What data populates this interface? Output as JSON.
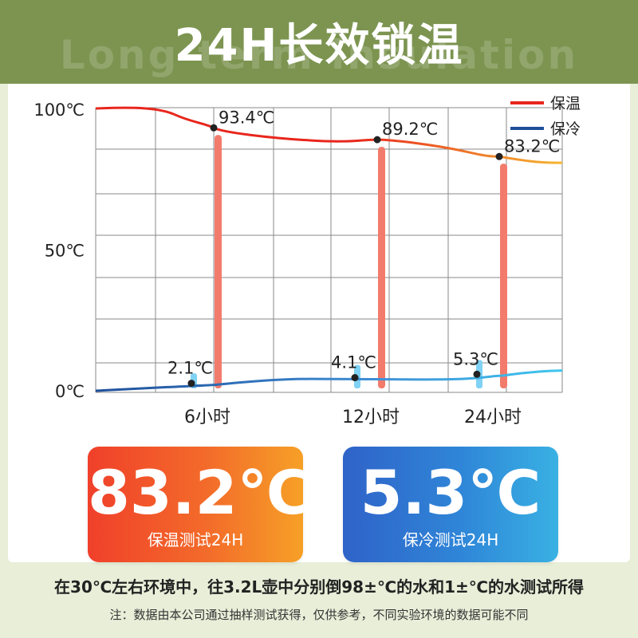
{
  "header": {
    "title": "24H长效锁温",
    "subtitle": "Long-term insulation"
  },
  "chart_data": {
    "type": "line",
    "x_ticks": [
      "6小时",
      "12小时",
      "24小时"
    ],
    "y_ticks": [
      "100℃",
      "50℃",
      "0℃"
    ],
    "ylim": [
      0,
      100
    ],
    "grid": true,
    "legend_position": "top-right",
    "series": [
      {
        "name": "保温",
        "color": "#e8261c",
        "end_color": "#f4b632",
        "points": [
          {
            "label": "6小时",
            "value": 93.4,
            "value_label": "93.4℃"
          },
          {
            "label": "12小时",
            "value": 89.2,
            "value_label": "89.2℃"
          },
          {
            "label": "24小时",
            "value": 83.2,
            "value_label": "83.2℃"
          }
        ]
      },
      {
        "name": "保冷",
        "color": "#1f4f9a",
        "end_color": "#3fc6ee",
        "points": [
          {
            "label": "6小时",
            "value": 2.1,
            "value_label": "2.1℃"
          },
          {
            "label": "12小时",
            "value": 4.1,
            "value_label": "4.1℃"
          },
          {
            "label": "24小时",
            "value": 5.3,
            "value_label": "5.3℃"
          }
        ]
      }
    ]
  },
  "cards": {
    "warm": {
      "value": "83.2℃",
      "label": "保温测试24H"
    },
    "cold": {
      "value": "5.3℃",
      "label": "保冷测试24H"
    }
  },
  "note": "在30℃左右环境中，往3.2L壶中分别倒98±℃的水和1±℃的水测试所得",
  "disclaimer": "注：数据由本公司通过抽样测试获得，仅供参考，不同实验环境的数据可能不同",
  "colors": {
    "header_bg": "#7c9450",
    "page_bg": "#e8eed8",
    "grid": "#8a8a8a",
    "warm_bar": "#f37b6c",
    "cold_bar": "#7fd2f4"
  }
}
